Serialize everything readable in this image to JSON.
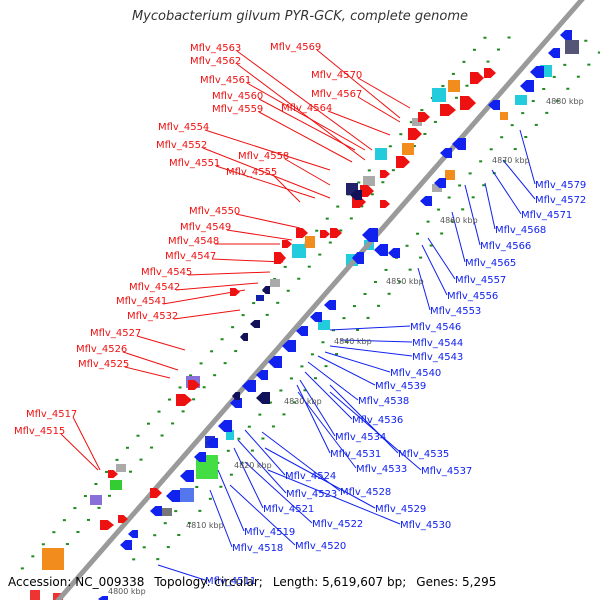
{
  "title": "Mycobacterium gilvum PYR-GCK, complete genome",
  "footer": {
    "accession": "Accession: NC_009338",
    "topology": "Topology: circular;",
    "length": "Length: 5,619,607 bp;",
    "genes": "Genes: 5,295"
  },
  "colors": {
    "forward": "#ee1111",
    "reverse": "#1122ee",
    "backbone": "#9a9a9a",
    "tick": "#1e8a1e"
  },
  "scale_labels": [
    "4800 kbp",
    "4810 kbp",
    "4820 kbp",
    "4830 kbp",
    "4840 kbp",
    "4850 kbp",
    "4860 kbp",
    "4870 kbp",
    "4880 kbp"
  ],
  "forward_genes": [
    "Mflv_4569",
    "Mflv_4563",
    "Mflv_4562",
    "Mflv_4570",
    "Mflv_4561",
    "Mflv_4567",
    "Mflv_4560",
    "Mflv_4564",
    "Mflv_4559",
    "Mflv_4554",
    "Mflv_4558",
    "Mflv_4552",
    "Mflv_4551",
    "Mflv_4555",
    "Mflv_4550",
    "Mflv_4549",
    "Mflv_4548",
    "Mflv_4547",
    "Mflv_4545",
    "Mflv_4542",
    "Mflv_4541",
    "Mflv_4532",
    "Mflv_4527",
    "Mflv_4526",
    "Mflv_4525",
    "Mflv_4517",
    "Mflv_4515"
  ],
  "reverse_genes": [
    "Mflv_4579",
    "Mflv_4572",
    "Mflv_4571",
    "Mflv_4568",
    "Mflv_4566",
    "Mflv_4565",
    "Mflv_4557",
    "Mflv_4556",
    "Mflv_4553",
    "Mflv_4546",
    "Mflv_4544",
    "Mflv_4543",
    "Mflv_4540",
    "Mflv_4539",
    "Mflv_4538",
    "Mflv_4536",
    "Mflv_4534",
    "Mflv_4531",
    "Mflv_4535",
    "Mflv_4533",
    "Mflv_4537",
    "Mflv_4524",
    "Mflv_4528",
    "Mflv_4523",
    "Mflv_4529",
    "Mflv_4521",
    "Mflv_4522",
    "Mflv_4530",
    "Mflv_4519",
    "Mflv_4520",
    "Mflv_4518",
    "Mflv_4511"
  ]
}
